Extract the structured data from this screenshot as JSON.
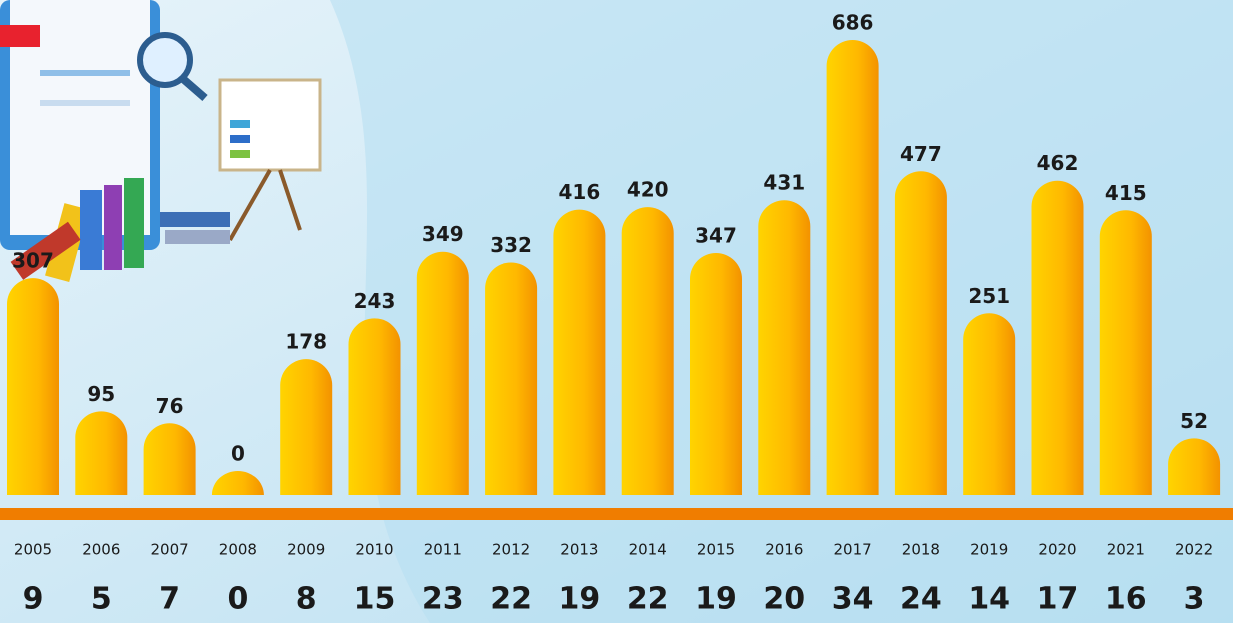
{
  "chart_data": {
    "type": "bar",
    "categories": [
      "2005",
      "2006",
      "2007",
      "2008",
      "2009",
      "2010",
      "2011",
      "2012",
      "2013",
      "2014",
      "2015",
      "2016",
      "2017",
      "2018",
      "2019",
      "2020",
      "2021",
      "2022"
    ],
    "values": [
      307,
      95,
      76,
      0,
      178,
      243,
      349,
      332,
      416,
      420,
      347,
      431,
      686,
      477,
      251,
      462,
      415,
      52
    ],
    "secondary_values": [
      9,
      5,
      7,
      0,
      8,
      15,
      23,
      22,
      19,
      22,
      19,
      20,
      34,
      24,
      14,
      17,
      16,
      3
    ],
    "color": "#ffc400",
    "baseline_color": "#f07d00"
  }
}
